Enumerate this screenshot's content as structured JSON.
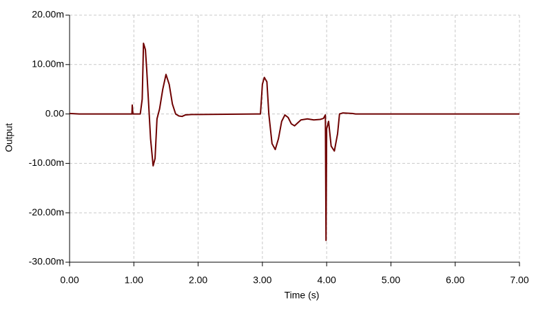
{
  "chart_data": {
    "type": "line",
    "x_label": "Time (s)",
    "y_label": "Output",
    "xlim": [
      0,
      7
    ],
    "ylim": [
      -30,
      20
    ],
    "xticks": [
      {
        "value": 0,
        "label": "0.00"
      },
      {
        "value": 1,
        "label": "1.00"
      },
      {
        "value": 2,
        "label": "2.00"
      },
      {
        "value": 3,
        "label": "3.00"
      },
      {
        "value": 4,
        "label": "4.00"
      },
      {
        "value": 5,
        "label": "5.00"
      },
      {
        "value": 6,
        "label": "6.00"
      },
      {
        "value": 7,
        "label": "7.00"
      }
    ],
    "yticks": [
      {
        "value": -30,
        "label": "-30.00m"
      },
      {
        "value": -20,
        "label": "-20.00m"
      },
      {
        "value": -10,
        "label": "-10.00m"
      },
      {
        "value": 0,
        "label": "0.00"
      },
      {
        "value": 10,
        "label": "10.00m"
      },
      {
        "value": 20,
        "label": "20.00m"
      }
    ],
    "grid": true,
    "series": [
      {
        "name": "Output",
        "color": "#6e0000",
        "x": [
          0,
          0.15,
          0.97,
          0.975,
          0.985,
          1.0,
          1.1,
          1.13,
          1.15,
          1.18,
          1.2,
          1.23,
          1.26,
          1.3,
          1.33,
          1.36,
          1.4,
          1.45,
          1.5,
          1.55,
          1.6,
          1.65,
          1.7,
          1.75,
          1.8,
          1.9,
          2.0,
          2.9,
          2.97,
          3.0,
          3.03,
          3.07,
          3.1,
          3.15,
          3.2,
          3.25,
          3.3,
          3.35,
          3.4,
          3.45,
          3.5,
          3.55,
          3.6,
          3.7,
          3.8,
          3.9,
          3.95,
          3.98,
          3.99,
          4.0,
          4.03,
          4.07,
          4.12,
          4.17,
          4.2,
          4.25,
          4.4,
          4.45,
          7.0
        ],
        "values": [
          0.1,
          0.0,
          0.0,
          1.8,
          0.0,
          0.0,
          0.0,
          3,
          14.3,
          13,
          9,
          2,
          -5,
          -10.5,
          -9,
          -1,
          1,
          5,
          8,
          6,
          2,
          0,
          -0.4,
          -0.5,
          -0.2,
          -0.1,
          -0.1,
          0,
          0,
          6,
          7.4,
          6.5,
          0,
          -6,
          -7.2,
          -5,
          -1.5,
          -0.2,
          -0.7,
          -2,
          -2.4,
          -1.8,
          -1.2,
          -1.0,
          -1.2,
          -1.1,
          -0.9,
          -0.2,
          -25.6,
          -3,
          -1.5,
          -6.5,
          -7.5,
          -4,
          0,
          0.2,
          0.1,
          0,
          0
        ]
      }
    ]
  }
}
